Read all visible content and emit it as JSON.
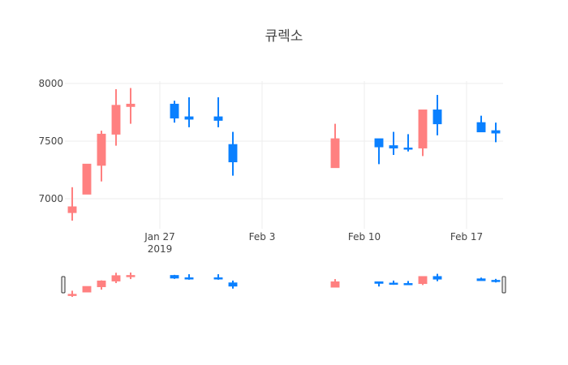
{
  "chart_data": {
    "type": "candlestick",
    "title": "큐렉소",
    "x": [
      "2019-01-21",
      "2019-01-22",
      "2019-01-23",
      "2019-01-24",
      "2019-01-25",
      "2019-01-28",
      "2019-01-29",
      "2019-01-31",
      "2019-02-01",
      "2019-02-08",
      "2019-02-11",
      "2019-02-12",
      "2019-02-13",
      "2019-02-14",
      "2019-02-15",
      "2019-02-18",
      "2019-02-19"
    ],
    "open": [
      6880,
      7040,
      7290,
      7560,
      7800,
      7820,
      7710,
      7710,
      7470,
      7270,
      7520,
      7460,
      7440,
      7440,
      7770,
      7660,
      7590
    ],
    "high": [
      7100,
      7300,
      7590,
      7950,
      7960,
      7850,
      7880,
      7880,
      7580,
      7650,
      7520,
      7580,
      7560,
      7770,
      7900,
      7720,
      7660
    ],
    "low": [
      6810,
      7040,
      7150,
      7460,
      7650,
      7660,
      7620,
      7620,
      7200,
      7270,
      7300,
      7380,
      7410,
      7370,
      7550,
      7580,
      7490
    ],
    "close": [
      6930,
      7300,
      7560,
      7810,
      7820,
      7700,
      7690,
      7680,
      7320,
      7520,
      7450,
      7440,
      7430,
      7770,
      7650,
      7580,
      7570
    ],
    "increasing_color": "#ff8080",
    "decreasing_color": "#0a80ff",
    "xlim": [
      "2019-01-20T12:00",
      "2019-02-19T12:00"
    ],
    "xticks": [
      {
        "value": "2019-01-27",
        "label": "Jan 27\n2019"
      },
      {
        "value": "2019-02-03",
        "label": "Feb 3"
      },
      {
        "value": "2019-02-10",
        "label": "Feb 10"
      },
      {
        "value": "2019-02-17",
        "label": "Feb 17"
      }
    ],
    "ylim": [
      6740,
      8020
    ],
    "yticks": [
      7000,
      7500,
      8000
    ],
    "grid": true,
    "rangeslider": true
  }
}
